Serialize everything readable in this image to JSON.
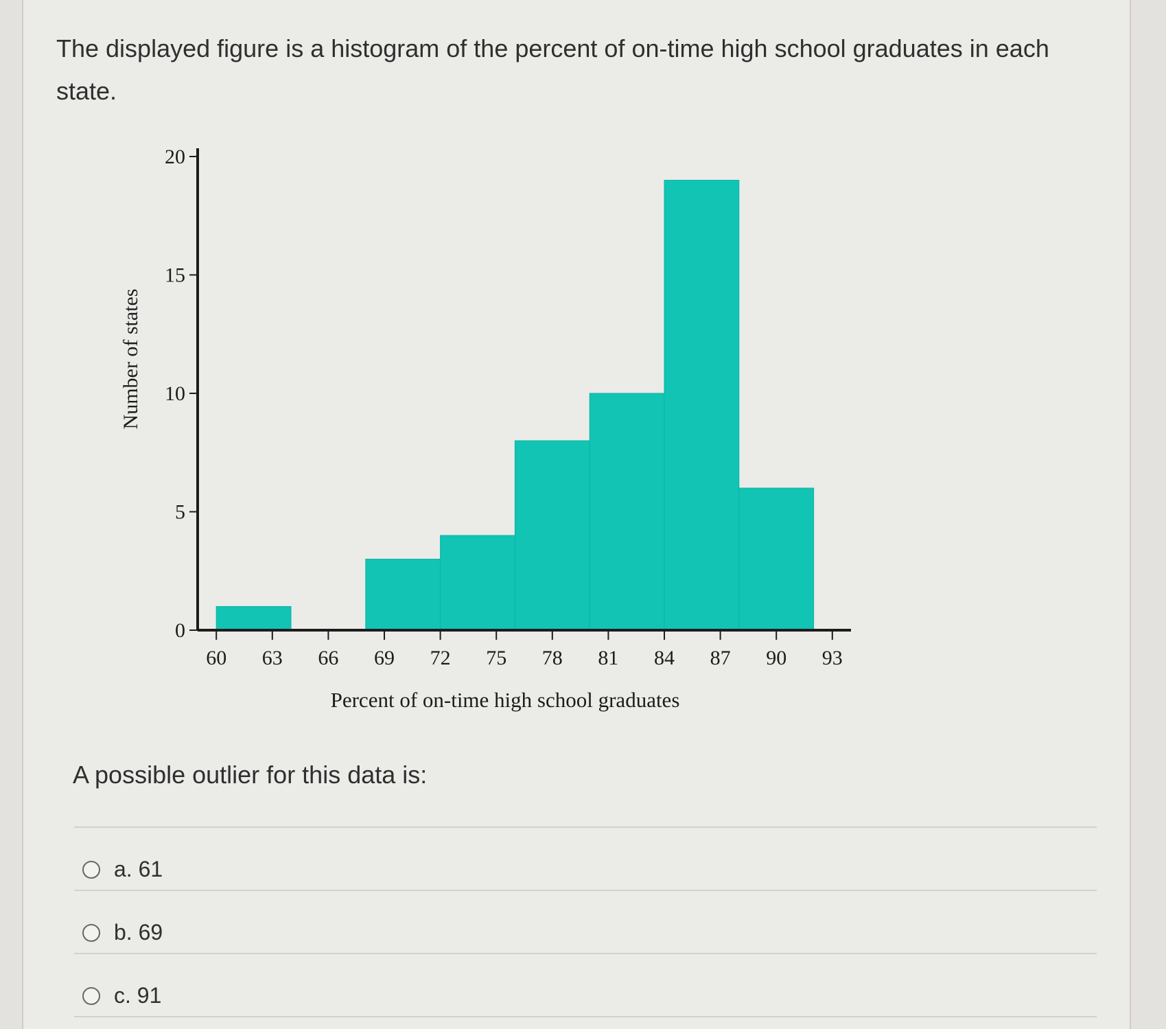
{
  "question": {
    "text": "The displayed figure is a histogram of the percent of on-time high school graduates in each state.",
    "prompt": "A possible outlier for this data is:"
  },
  "options": [
    {
      "label": "a. 61"
    },
    {
      "label": "b. 69"
    },
    {
      "label": "c. 91"
    }
  ],
  "chart_data": {
    "type": "bar",
    "histogram": true,
    "xlabel": "Percent of on-time high school graduates",
    "ylabel": "Number of states",
    "x_ticks": [
      60,
      63,
      66,
      69,
      72,
      75,
      78,
      81,
      84,
      87,
      90,
      93
    ],
    "y_ticks": [
      0,
      5,
      10,
      15,
      20
    ],
    "xlim": [
      59,
      94
    ],
    "ylim": [
      0,
      20
    ],
    "bins": [
      {
        "start": 60,
        "end": 64,
        "count": 1
      },
      {
        "start": 64,
        "end": 68,
        "count": 0
      },
      {
        "start": 68,
        "end": 72,
        "count": 3
      },
      {
        "start": 72,
        "end": 76,
        "count": 4
      },
      {
        "start": 76,
        "end": 80,
        "count": 8
      },
      {
        "start": 80,
        "end": 84,
        "count": 10
      },
      {
        "start": 84,
        "end": 88,
        "count": 19
      },
      {
        "start": 88,
        "end": 92,
        "count": 6
      }
    ],
    "bar_color": "#11c4b4",
    "grid": false
  }
}
